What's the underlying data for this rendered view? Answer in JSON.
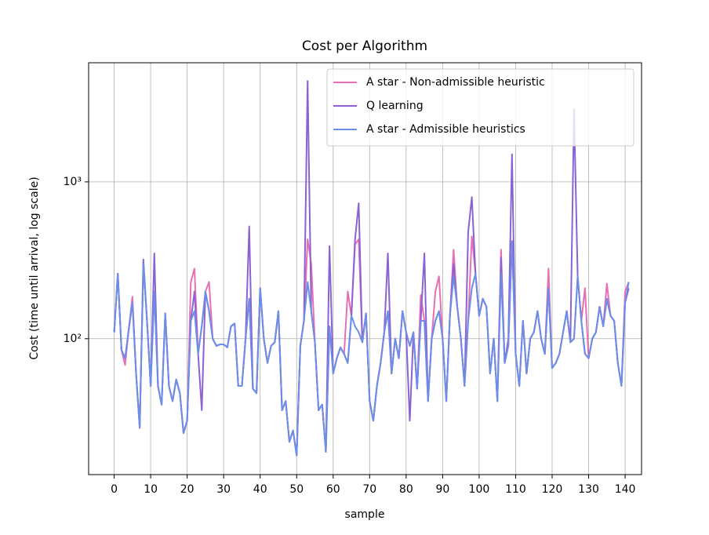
{
  "chart_data": {
    "type": "line",
    "title": "Cost per Algorithm",
    "xlabel": "sample",
    "ylabel": "Cost (time until arrival, log scale)",
    "x": [
      0,
      1,
      2,
      3,
      4,
      5,
      6,
      7,
      8,
      9,
      10,
      11,
      12,
      13,
      14,
      15,
      16,
      17,
      18,
      19,
      20,
      21,
      22,
      23,
      24,
      25,
      26,
      27,
      28,
      29,
      30,
      31,
      32,
      33,
      34,
      35,
      36,
      37,
      38,
      39,
      40,
      41,
      42,
      43,
      44,
      45,
      46,
      47,
      48,
      49,
      50,
      51,
      52,
      53,
      54,
      55,
      56,
      57,
      58,
      59,
      60,
      61,
      62,
      63,
      64,
      65,
      66,
      67,
      68,
      69,
      70,
      71,
      72,
      73,
      74,
      75,
      76,
      77,
      78,
      79,
      80,
      81,
      82,
      83,
      84,
      85,
      86,
      87,
      88,
      89,
      90,
      91,
      92,
      93,
      94,
      95,
      96,
      97,
      98,
      99,
      100,
      101,
      102,
      103,
      104,
      105,
      106,
      107,
      108,
      109,
      110,
      111,
      112,
      113,
      114,
      115,
      116,
      117,
      118,
      119,
      120,
      121,
      122,
      123,
      124,
      125,
      126,
      127,
      128,
      129,
      130,
      131,
      132,
      133,
      134,
      135,
      136,
      137,
      138,
      139,
      140,
      141
    ],
    "series": [
      {
        "name": "A star - Non-admissible heuristic",
        "color": "#e86fb2",
        "values": [
          110,
          260,
          85,
          68,
          115,
          185,
          60,
          27,
          300,
          130,
          50,
          200,
          50,
          38,
          145,
          50,
          40,
          55,
          45,
          25,
          30,
          230,
          280,
          80,
          120,
          200,
          230,
          100,
          90,
          92,
          92,
          88,
          120,
          125,
          50,
          50,
          100,
          180,
          48,
          45,
          210,
          100,
          70,
          90,
          95,
          150,
          35,
          40,
          22,
          26,
          18,
          90,
          130,
          430,
          300,
          95,
          35,
          38,
          19,
          120,
          60,
          75,
          88,
          80,
          200,
          140,
          400,
          430,
          95,
          145,
          40,
          30,
          50,
          70,
          110,
          150,
          60,
          100,
          75,
          150,
          110,
          90,
          110,
          48,
          190,
          130,
          40,
          100,
          200,
          250,
          100,
          40,
          140,
          370,
          160,
          100,
          50,
          130,
          450,
          260,
          140,
          180,
          160,
          60,
          100,
          40,
          370,
          70,
          90,
          420,
          80,
          50,
          130,
          60,
          100,
          110,
          150,
          100,
          80,
          280,
          65,
          70,
          80,
          110,
          150,
          95,
          100,
          250,
          130,
          210,
          75,
          100,
          110,
          160,
          120,
          225,
          140,
          130,
          70,
          50,
          200,
          230
        ]
      },
      {
        "name": "Q learning",
        "color": "#8b62d4",
        "values": [
          110,
          260,
          85,
          75,
          115,
          170,
          60,
          27,
          320,
          130,
          50,
          350,
          50,
          38,
          145,
          50,
          40,
          55,
          45,
          25,
          30,
          130,
          200,
          80,
          35,
          200,
          150,
          100,
          90,
          92,
          92,
          88,
          120,
          125,
          50,
          50,
          100,
          520,
          48,
          45,
          210,
          100,
          70,
          90,
          95,
          150,
          35,
          40,
          22,
          26,
          18,
          90,
          130,
          4400,
          150,
          95,
          35,
          38,
          19,
          390,
          60,
          75,
          88,
          80,
          70,
          140,
          430,
          730,
          95,
          145,
          40,
          30,
          50,
          70,
          110,
          350,
          60,
          100,
          75,
          150,
          110,
          30,
          110,
          48,
          130,
          350,
          40,
          100,
          130,
          150,
          100,
          40,
          140,
          300,
          160,
          100,
          50,
          480,
          800,
          260,
          140,
          180,
          160,
          60,
          100,
          40,
          330,
          70,
          100,
          1500,
          80,
          50,
          130,
          60,
          100,
          110,
          150,
          100,
          80,
          210,
          65,
          70,
          80,
          110,
          150,
          95,
          2900,
          250,
          130,
          80,
          75,
          100,
          110,
          160,
          120,
          180,
          140,
          130,
          70,
          50,
          170,
          210
        ]
      },
      {
        "name": "A star - Admissible heuristics",
        "color": "#6b8fe6",
        "values": [
          110,
          260,
          85,
          75,
          115,
          170,
          60,
          27,
          300,
          130,
          50,
          200,
          50,
          38,
          145,
          50,
          40,
          55,
          45,
          25,
          30,
          130,
          150,
          80,
          120,
          200,
          150,
          100,
          90,
          92,
          92,
          88,
          120,
          125,
          50,
          50,
          100,
          180,
          48,
          45,
          210,
          100,
          70,
          90,
          95,
          150,
          35,
          40,
          22,
          26,
          18,
          90,
          130,
          230,
          150,
          95,
          35,
          38,
          19,
          120,
          60,
          75,
          88,
          80,
          70,
          140,
          120,
          110,
          95,
          145,
          40,
          30,
          50,
          70,
          110,
          150,
          60,
          100,
          75,
          150,
          110,
          90,
          110,
          48,
          130,
          130,
          40,
          100,
          130,
          150,
          100,
          40,
          140,
          250,
          160,
          100,
          50,
          130,
          210,
          260,
          140,
          180,
          160,
          60,
          100,
          40,
          260,
          70,
          90,
          420,
          80,
          50,
          130,
          60,
          100,
          110,
          150,
          100,
          80,
          210,
          65,
          70,
          80,
          110,
          150,
          95,
          100,
          250,
          130,
          80,
          75,
          100,
          110,
          160,
          120,
          180,
          140,
          130,
          70,
          50,
          170,
          230
        ]
      }
    ],
    "xlim": [
      -7,
      144.5
    ],
    "xticks": [
      0,
      10,
      20,
      30,
      40,
      50,
      60,
      70,
      80,
      90,
      100,
      110,
      120,
      130,
      140
    ],
    "ylim": [
      13.6,
      5750
    ],
    "yscale": "log",
    "yticks": [
      {
        "value": 100,
        "label": "10²"
      },
      {
        "value": 1000,
        "label": "10³"
      }
    ],
    "grid": true,
    "legend": "upper right"
  }
}
